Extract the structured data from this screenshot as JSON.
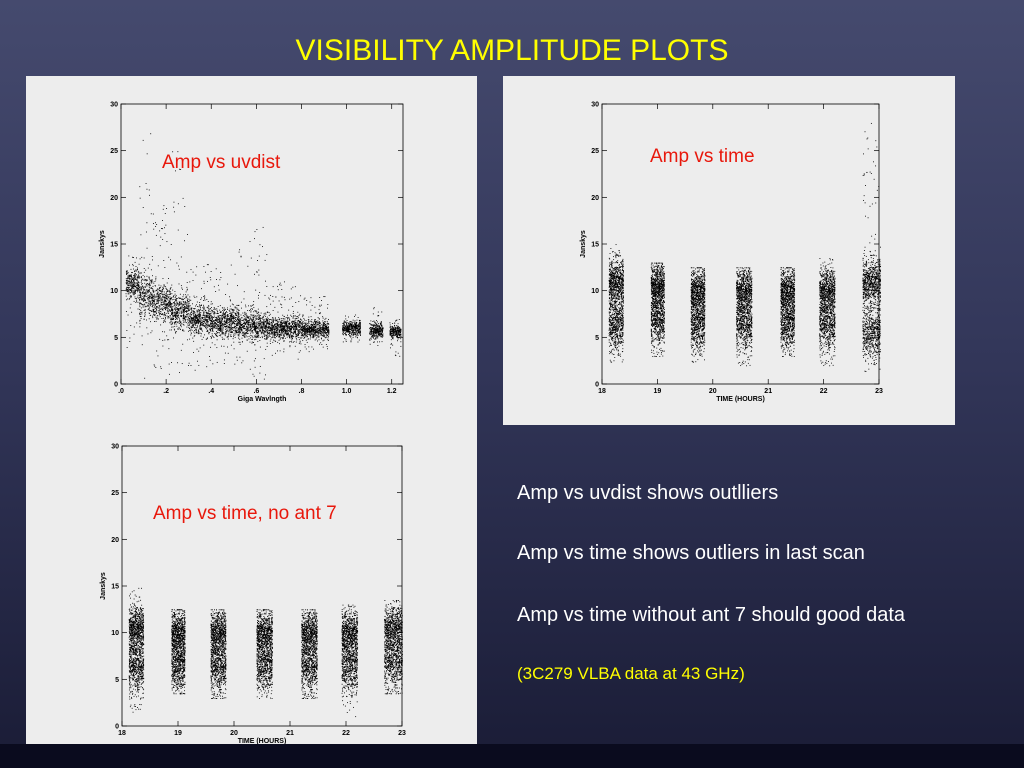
{
  "slide": {
    "title": "VISIBILITY AMPLITUDE PLOTS",
    "notes": [
      "Amp vs uvdist shows outlliers",
      "Amp vs time shows outliers in last scan",
      "Amp vs time without ant 7 should good data"
    ],
    "source_note": "(3C279 VLBA data at 43 GHz)",
    "colors": {
      "title": "#ffff00",
      "plot_label": "#e8180c",
      "note_text": "#ffffff",
      "source_note": "#ffff00"
    }
  },
  "chart_data": [
    {
      "id": "uvdist",
      "type": "scatter",
      "annotation": "Amp vs uvdist",
      "xlabel": "Giga Wavlngth",
      "ylabel": "Janskys",
      "xlim": [
        0,
        1.25
      ],
      "ylim": [
        0,
        30
      ],
      "xticks": [
        0,
        0.2,
        0.4,
        0.6,
        0.8,
        1.0,
        1.2
      ],
      "xtick_labels": [
        ".0",
        ".2",
        ".4",
        ".6",
        ".8",
        "1.0",
        "1.2"
      ],
      "yticks": [
        0,
        5,
        10,
        15,
        20,
        25,
        30
      ],
      "ytick_labels": [
        "0",
        "5",
        "10",
        "15",
        "20",
        "25",
        "30"
      ],
      "clusters": [
        {
          "x": [
            0.02,
            0.08
          ],
          "center": 10.8,
          "spread": 1.3,
          "min": 3,
          "max": 14
        },
        {
          "x": [
            0.08,
            0.14
          ],
          "center": 9.5,
          "spread": 2.2,
          "min": 0.5,
          "max": 27
        },
        {
          "x": [
            0.14,
            0.22
          ],
          "center": 8.8,
          "spread": 1.8,
          "min": 1,
          "max": 20
        },
        {
          "x": [
            0.22,
            0.3
          ],
          "center": 7.8,
          "spread": 1.6,
          "min": 1,
          "max": 26
        },
        {
          "x": [
            0.3,
            0.4
          ],
          "center": 7.0,
          "spread": 1.4,
          "min": 1.5,
          "max": 13
        },
        {
          "x": [
            0.4,
            0.52
          ],
          "center": 6.6,
          "spread": 1.3,
          "min": 2,
          "max": 13
        },
        {
          "x": [
            0.52,
            0.65
          ],
          "center": 6.3,
          "spread": 1.3,
          "min": 0.5,
          "max": 17
        },
        {
          "x": [
            0.65,
            0.8
          ],
          "center": 6.0,
          "spread": 1.0,
          "min": 2.5,
          "max": 11
        },
        {
          "x": [
            0.8,
            0.92
          ],
          "center": 5.9,
          "spread": 0.8,
          "min": 3.5,
          "max": 9.5
        },
        {
          "x": [
            0.98,
            1.06
          ],
          "center": 6.0,
          "spread": 0.6,
          "min": 4.5,
          "max": 7.5
        },
        {
          "x": [
            1.1,
            1.16
          ],
          "center": 5.8,
          "spread": 0.7,
          "min": 3.5,
          "max": 9
        },
        {
          "x": [
            1.19,
            1.24
          ],
          "center": 5.6,
          "spread": 0.6,
          "min": 3,
          "max": 7
        }
      ]
    },
    {
      "id": "time",
      "type": "scatter",
      "annotation": "Amp vs time",
      "xlabel": "TIME (HOURS)",
      "ylabel": "Janskys",
      "xlim": [
        18,
        23
      ],
      "ylim": [
        0,
        30
      ],
      "xticks": [
        18,
        19,
        20,
        21,
        22,
        23
      ],
      "xtick_labels": [
        "18",
        "19",
        "20",
        "21",
        "22",
        "23"
      ],
      "yticks": [
        0,
        5,
        10,
        15,
        20,
        25,
        30
      ],
      "ytick_labels": [
        "0",
        "5",
        "10",
        "15",
        "20",
        "25",
        "30"
      ],
      "scans": [
        {
          "x": [
            18.12,
            18.38
          ],
          "low": 4,
          "high": 13,
          "min": 2,
          "max": 15
        },
        {
          "x": [
            18.88,
            19.12
          ],
          "low": 4.5,
          "high": 12.5,
          "min": 3,
          "max": 13
        },
        {
          "x": [
            19.6,
            19.85
          ],
          "low": 4,
          "high": 12,
          "min": 2,
          "max": 12.5
        },
        {
          "x": [
            20.42,
            20.7
          ],
          "low": 4,
          "high": 12,
          "min": 2,
          "max": 12.5
        },
        {
          "x": [
            21.22,
            21.47
          ],
          "low": 4,
          "high": 12,
          "min": 3,
          "max": 12.5
        },
        {
          "x": [
            21.92,
            22.2
          ],
          "low": 4,
          "high": 12,
          "min": 2,
          "max": 13.5
        },
        {
          "x": [
            22.7,
            23.02
          ],
          "low": 3,
          "high": 13,
          "min": 0.5,
          "max": 28
        }
      ]
    },
    {
      "id": "time_no_ant7",
      "type": "scatter",
      "annotation": "Amp vs time, no ant 7",
      "xlabel": "TIME (HOURS)",
      "ylabel": "Janskys",
      "xlim": [
        18,
        23
      ],
      "ylim": [
        0,
        30
      ],
      "xticks": [
        18,
        19,
        20,
        21,
        22,
        23
      ],
      "xtick_labels": [
        "18",
        "19",
        "20",
        "21",
        "22",
        "23"
      ],
      "yticks": [
        0,
        5,
        10,
        15,
        20,
        25,
        30
      ],
      "ytick_labels": [
        "0",
        "5",
        "10",
        "15",
        "20",
        "25",
        "30"
      ],
      "scans": [
        {
          "x": [
            18.12,
            18.38
          ],
          "low": 4,
          "high": 12.5,
          "min": 1.5,
          "max": 15
        },
        {
          "x": [
            18.88,
            19.12
          ],
          "low": 4,
          "high": 12,
          "min": 3.5,
          "max": 12.5
        },
        {
          "x": [
            19.58,
            19.85
          ],
          "low": 4,
          "high": 12,
          "min": 3,
          "max": 12.5
        },
        {
          "x": [
            20.4,
            20.68
          ],
          "low": 4,
          "high": 12,
          "min": 3,
          "max": 12.5
        },
        {
          "x": [
            21.2,
            21.48
          ],
          "low": 4,
          "high": 12,
          "min": 3,
          "max": 12.5
        },
        {
          "x": [
            21.92,
            22.2
          ],
          "low": 4,
          "high": 12,
          "min": 1,
          "max": 13
        },
        {
          "x": [
            22.68,
            23.0
          ],
          "low": 4.5,
          "high": 12.5,
          "min": 3.5,
          "max": 13.5
        }
      ]
    }
  ]
}
